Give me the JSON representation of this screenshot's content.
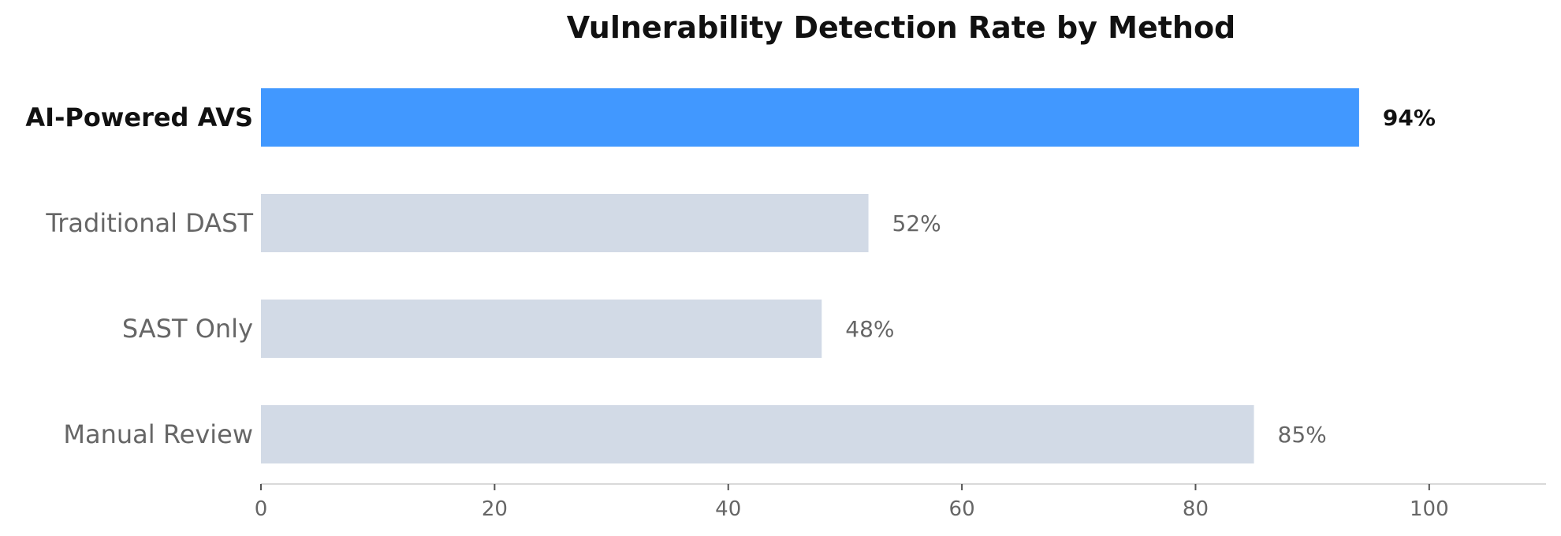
{
  "chart_data": {
    "type": "bar",
    "orientation": "horizontal",
    "title": "Vulnerability Detection Rate by Method",
    "xlabel": "",
    "ylabel": "",
    "categories": [
      "AI-Powered AVS",
      "Traditional DAST",
      "SAST Only",
      "Manual Review"
    ],
    "values": [
      94,
      52,
      48,
      85
    ],
    "value_labels": [
      "94%",
      "52%",
      "48%",
      "85%"
    ],
    "highlight_index": 0,
    "xlim": [
      0,
      110
    ],
    "x_ticks": [
      0,
      20,
      40,
      60,
      80,
      100
    ],
    "x_tick_labels": [
      "0",
      "20",
      "40",
      "60",
      "80",
      "100"
    ],
    "grid": false,
    "colors": {
      "highlight": "#4198FF",
      "default": "#D2DAE6",
      "axis": "#D9D9D9"
    }
  }
}
